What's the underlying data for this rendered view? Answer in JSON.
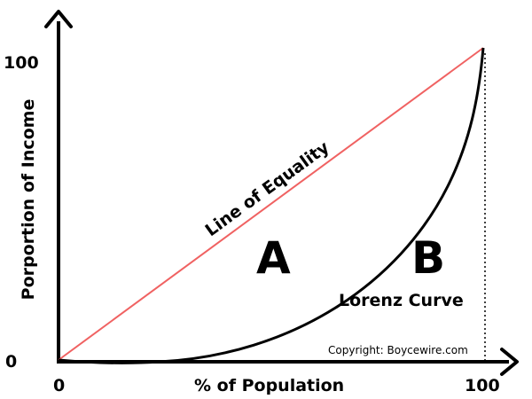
{
  "axes": {
    "y_label": "Porportion of Income",
    "x_label": "% of Population",
    "x_ticks": [
      "0",
      "100"
    ],
    "y_ticks": [
      "0",
      "100"
    ]
  },
  "lines": {
    "equality_label": "Line of Equality",
    "equality_color": "#f06262",
    "lorenz_label": "Lorenz Curve",
    "lorenz_color": "#000000"
  },
  "areas": {
    "a_label": "A",
    "b_label": "B"
  },
  "copyright": "Copyright: Boycewire.com"
}
